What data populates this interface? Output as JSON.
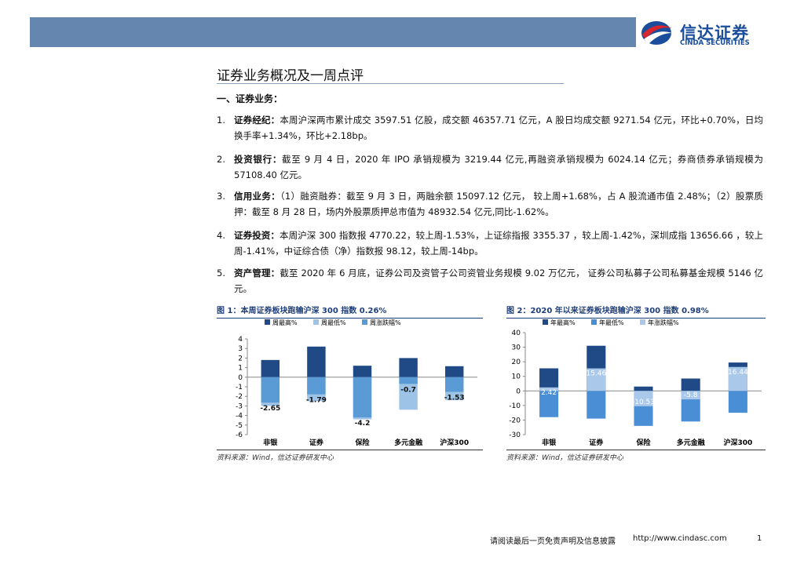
{
  "header": {
    "logo_cn": "信达证券",
    "logo_en": "CINDA SECURITIES"
  },
  "section_title": "证券业务概况及一周点评",
  "subsection": "一、证券业务：",
  "items": [
    {
      "number": "1.",
      "label": "证券经纪：",
      "text": "本周沪深两市累计成交 3597.51 亿股，成交额 46357.71 亿元，A 股日均成交额 9271.54 亿元，环比+0.70%，日均换手率+1.34%，环比+2.18bp。"
    },
    {
      "number": "2.",
      "label": "投资银行：",
      "text": "截至 9 月 4 日，2020 年 IPO 承销规模为 3219.44 亿元,再融资承销规模为 6024.14 亿元；券商债券承销规模为 57108.40 亿元。"
    },
    {
      "number": "3.",
      "label": "信用业务：",
      "text": "（1）融资融券：截至 9 月 3 日，两融余额 15097.12 亿元， 较上周+1.68%，占 A 股流通市值 2.48%；（2）股票质押：截至 8 月 28 日，场内外股票质押总市值为 48932.54 亿元,同比-1.62%。"
    },
    {
      "number": "4.",
      "label": "证券投资：",
      "text": "本周沪深 300 指数报 4770.22，较上周-1.53%，上证综指报 3355.37 ，较上周-1.42%，深圳成指 13656.66 ，较上周-1.41%，中证综合债（净）指数报 98.12，较上周-14bp。"
    },
    {
      "number": "5.",
      "label": "资产管理：",
      "text": "截至 2020 年 6 月底，证券公司及资管子公司资管业务规模 9.02 万亿元， 证券公司私募子公司私募基金规模 5146 亿元。"
    }
  ],
  "chart_data": [
    {
      "type": "bar",
      "title": "图 1：本周证券板块跑输沪深 300 指数 0.26%",
      "categories": [
        "非银",
        "证券",
        "保险",
        "多元金融",
        "沪深300"
      ],
      "series": [
        {
          "name": "周最高%",
          "color": "#1f4a86",
          "values": [
            1.8,
            3.2,
            1.2,
            2.0,
            1.15
          ]
        },
        {
          "name": "周最低%",
          "color": "#9dc3e6",
          "values": [
            -3.0,
            -2.5,
            -4.4,
            -3.4,
            -2.4
          ]
        },
        {
          "name": "周涨跌幅%",
          "color": "#5b9bd5",
          "values": [
            -2.65,
            -1.79,
            -4.2,
            -0.7,
            -1.53
          ],
          "data_labels": true
        }
      ],
      "ylim": [
        -6,
        4
      ],
      "yticks": [
        -6,
        -5,
        -4,
        -3,
        -2,
        -1,
        0,
        1,
        2,
        3,
        4
      ],
      "source": "资料来源：Wind，信达证券研发中心"
    },
    {
      "type": "bar",
      "title": "图 2：2020 年以来证券板块跑输沪深 300 指数 0.98%",
      "categories": [
        "非银",
        "证券",
        "保险",
        "多元金融",
        "沪深300"
      ],
      "series": [
        {
          "name": "年最高%",
          "color": "#1f4a86",
          "values": [
            15.5,
            31,
            3,
            8.5,
            19.5
          ]
        },
        {
          "name": "年最低%",
          "color": "#4a8fd6",
          "values": [
            -18,
            -19,
            -24,
            -21,
            -15
          ]
        },
        {
          "name": "年涨跌幅%",
          "color": "#a9c8ea",
          "values": [
            2.42,
            15.46,
            -10.53,
            -5.8,
            16.44
          ],
          "data_labels": true
        }
      ],
      "ylim": [
        -30,
        40
      ],
      "yticks": [
        -30,
        -20,
        -10,
        0,
        10,
        20,
        30,
        40
      ],
      "source": "资料来源：Wind，信达证券研发中心"
    }
  ],
  "footer": {
    "disclaimer": "请阅读最后一页免责声明及信息披露",
    "url": "http://www.cindasc.com",
    "page": "1"
  }
}
